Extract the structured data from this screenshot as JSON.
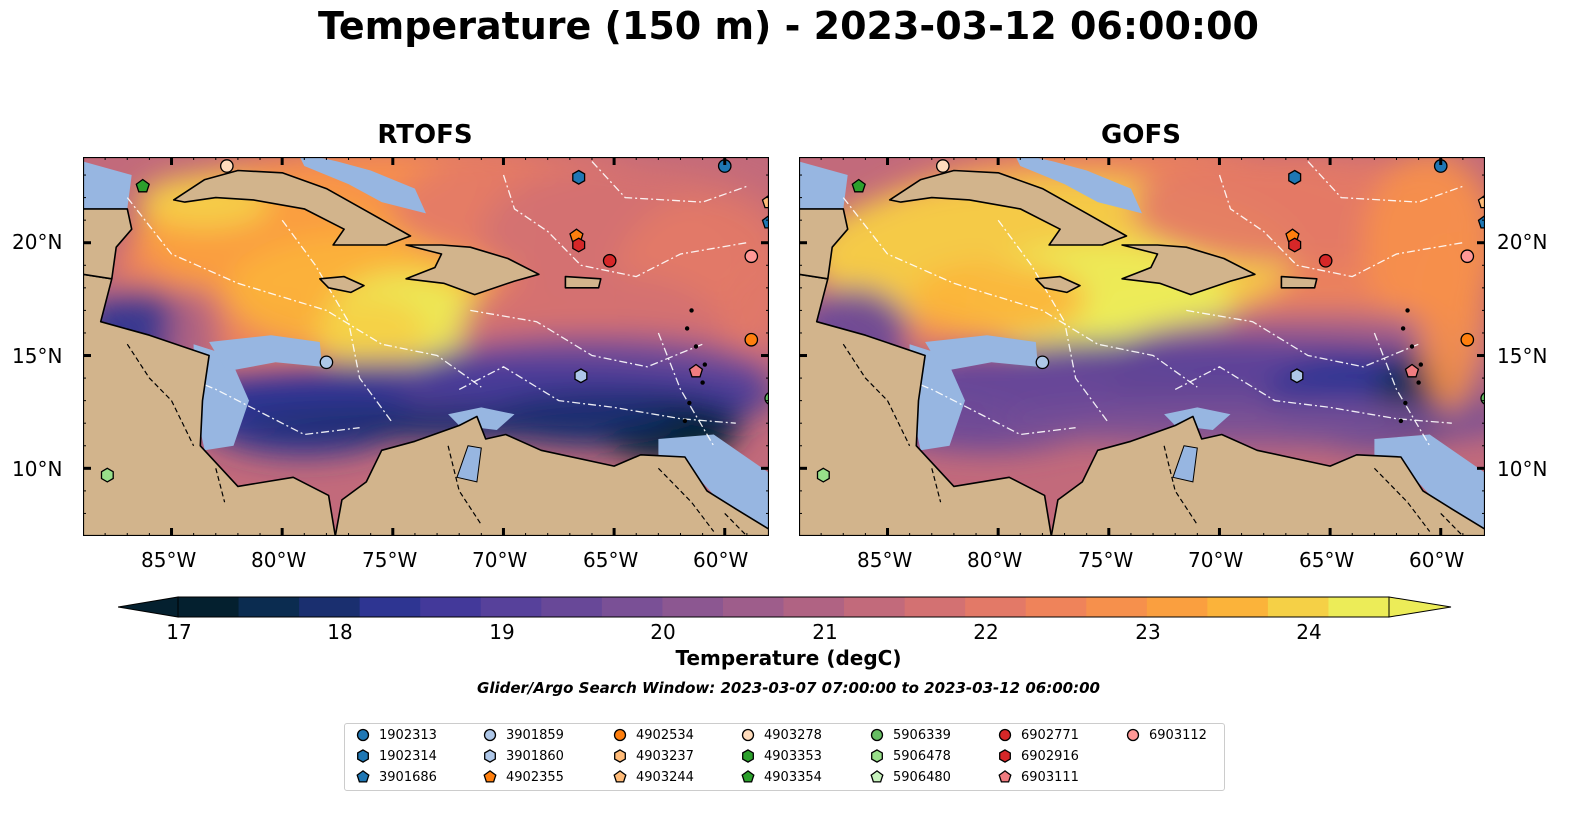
{
  "title": "Temperature (150 m) - 2023-03-12 06:00:00",
  "panels": [
    {
      "title": "RTOFS"
    },
    {
      "title": "GOFS"
    }
  ],
  "lat_labels": [
    "20°N",
    "15°N",
    "10°N"
  ],
  "lon_labels": [
    "85°W",
    "80°W",
    "75°W",
    "70°W",
    "65°W",
    "60°W"
  ],
  "colorbar": {
    "label": "Temperature (degC)",
    "ticks": [
      "17",
      "18",
      "19",
      "20",
      "21",
      "22",
      "23",
      "24"
    ],
    "min": 16.75,
    "max": 24.5,
    "colors": [
      "#04202f",
      "#0b2c50",
      "#1a2f6f",
      "#2e3592",
      "#43399a",
      "#57419b",
      "#684898",
      "#7a5096",
      "#8c5791",
      "#9e5d8b",
      "#b06383",
      "#c26a7b",
      "#d37172",
      "#e37967",
      "#ef835a",
      "#f6904c",
      "#fa9f3f",
      "#fbb33a",
      "#f5d046",
      "#ecec58"
    ]
  },
  "search_window": "Glider/Argo Search Window: 2023-03-07 07:00:00 to 2023-03-12 06:00:00",
  "legend": [
    {
      "id": "1902313",
      "marker": "circle",
      "color": "#1f77b4"
    },
    {
      "id": "1902314",
      "marker": "hexagon",
      "color": "#1f77b4"
    },
    {
      "id": "3901686",
      "marker": "pentagon",
      "color": "#1f77b4"
    },
    {
      "id": "3901859",
      "marker": "circle",
      "color": "#aec7e8"
    },
    {
      "id": "3901860",
      "marker": "hexagon",
      "color": "#aec7e8"
    },
    {
      "id": "4902355",
      "marker": "pentagon",
      "color": "#ff7f0e"
    },
    {
      "id": "4902534",
      "marker": "circle",
      "color": "#ff7f0e"
    },
    {
      "id": "4903237",
      "marker": "hexagon",
      "color": "#ffbb78"
    },
    {
      "id": "4903244",
      "marker": "pentagon",
      "color": "#ffbb78"
    },
    {
      "id": "4903278",
      "marker": "circle",
      "color": "#ffdcbc"
    },
    {
      "id": "4903353",
      "marker": "hexagon",
      "color": "#2ca02c"
    },
    {
      "id": "4903354",
      "marker": "pentagon",
      "color": "#2ca02c"
    },
    {
      "id": "5906339",
      "marker": "circle",
      "color": "#66bd63"
    },
    {
      "id": "5906478",
      "marker": "hexagon",
      "color": "#98df8a"
    },
    {
      "id": "5906480",
      "marker": "pentagon",
      "color": "#c7f2bd"
    },
    {
      "id": "6902771",
      "marker": "circle",
      "color": "#d62728"
    },
    {
      "id": "6902916",
      "marker": "hexagon",
      "color": "#d62728"
    },
    {
      "id": "6903111",
      "marker": "pentagon",
      "color": "#f07c80"
    },
    {
      "id": "6903112",
      "marker": "circle",
      "color": "#ff9896"
    }
  ],
  "floats": [
    {
      "lon": -87.9,
      "lat": 9.7,
      "id": "5906478"
    },
    {
      "lon": -86.3,
      "lat": 22.5,
      "id": "4903354"
    },
    {
      "lon": -82.5,
      "lat": 23.4,
      "id": "4903278"
    },
    {
      "lon": -78.0,
      "lat": 14.7,
      "id": "3901859"
    },
    {
      "lon": -66.6,
      "lat": 22.9,
      "id": "1902314"
    },
    {
      "lon": -66.7,
      "lat": 20.3,
      "id": "4902355"
    },
    {
      "lon": -66.6,
      "lat": 19.9,
      "id": "6902916"
    },
    {
      "lon": -65.2,
      "lat": 19.2,
      "id": "6902771"
    },
    {
      "lon": -66.5,
      "lat": 14.1,
      "id": "3901860"
    },
    {
      "lon": -61.3,
      "lat": 14.3,
      "id": "6903111"
    },
    {
      "lon": -60.0,
      "lat": 23.4,
      "id": "1902313"
    },
    {
      "lon": -58.8,
      "lat": 19.4,
      "id": "6903112"
    },
    {
      "lon": -58.8,
      "lat": 15.7,
      "id": "4902534"
    },
    {
      "lon": -58.0,
      "lat": 21.8,
      "id": "4903244"
    },
    {
      "lon": -58.0,
      "lat": 20.9,
      "id": "3901686"
    },
    {
      "lon": -57.9,
      "lat": 13.1,
      "id": "5906339"
    }
  ],
  "map_extent": {
    "lon_min": -89.0,
    "lon_max": -58.0,
    "lat_min": 7.0,
    "lat_max": 23.8
  },
  "colors": {
    "land": "#d2b48c",
    "shallow": "#97b6e1",
    "deep": "#04202f"
  }
}
